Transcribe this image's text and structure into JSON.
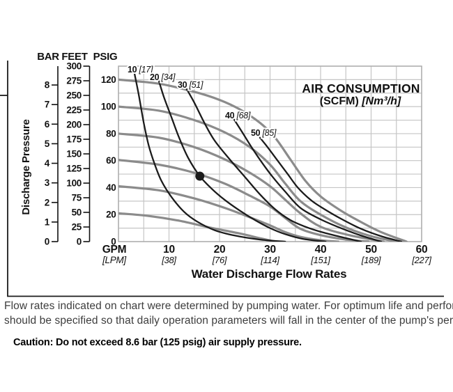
{
  "colors": {
    "performance_curve": "#8b8b8b",
    "air_curve": "#1b1b1b",
    "grid": "#c5c5c5",
    "plot_border": "#adadad",
    "text": "#111111",
    "figure_border": "#1b1b1b",
    "note_text": "#3d3d3d"
  },
  "figure": {
    "y_axis_title": "Discharge Pressure",
    "scale_headers": {
      "bar": "BAR",
      "feet": "FEET",
      "psig": "PSIG"
    },
    "x_unit_primary": "GPM",
    "x_unit_secondary": "[LPM]",
    "x_axis_title": "Water Discharge Flow Rates",
    "legend_title_line1": "AIR CONSUMPTION",
    "legend_title_bold": "(SCFM)",
    "legend_title_italic": "[Nm³/h]"
  },
  "chart_data": {
    "type": "line",
    "title": "AIR CONSUMPTION (SCFM) [Nm³/h]",
    "xlabel": "Water Discharge Flow Rates",
    "ylabel": "Discharge Pressure",
    "xlim_gpm": [
      0,
      60
    ],
    "ylim_psig": [
      0,
      130
    ],
    "grid_step_x_gpm": 5,
    "grid_step_y_psig": 10,
    "x_ticks": [
      {
        "gpm": "10",
        "lpm": "[38]"
      },
      {
        "gpm": "20",
        "lpm": "[76]"
      },
      {
        "gpm": "30",
        "lpm": "[114]"
      },
      {
        "gpm": "40",
        "lpm": "[151]"
      },
      {
        "gpm": "50",
        "lpm": "[189]"
      },
      {
        "gpm": "60",
        "lpm": "[227]"
      }
    ],
    "bar_scale": {
      "ticks": [
        0,
        1,
        2,
        3,
        4,
        5,
        6,
        7,
        8
      ],
      "psi_per_bar": 14.5038
    },
    "feet_scale": {
      "ticks": [
        0,
        25,
        50,
        75,
        100,
        125,
        150,
        175,
        200,
        225,
        250,
        275,
        300
      ],
      "psi_per_foot": 0.43333
    },
    "psig_scale": {
      "ticks": [
        0,
        20,
        40,
        60,
        80,
        100,
        120
      ]
    },
    "performance_curves": [
      {
        "name": "120-psig-curve",
        "start_psig": 120,
        "points": [
          [
            0,
            120
          ],
          [
            8,
            117
          ],
          [
            15,
            111
          ],
          [
            20,
            105
          ],
          [
            24,
            98
          ],
          [
            28,
            88
          ],
          [
            31,
            77
          ],
          [
            34,
            61
          ],
          [
            37,
            45
          ],
          [
            40,
            33.5
          ],
          [
            44,
            23
          ],
          [
            48,
            14.5
          ],
          [
            52,
            7
          ],
          [
            57,
            0
          ]
        ]
      },
      {
        "name": "100-psig-curve",
        "start_psig": 100,
        "points": [
          [
            0,
            100
          ],
          [
            8,
            97
          ],
          [
            15,
            90
          ],
          [
            21,
            81
          ],
          [
            26,
            70
          ],
          [
            30,
            57
          ],
          [
            33,
            43
          ],
          [
            36,
            30
          ],
          [
            40,
            20
          ],
          [
            45,
            10.5
          ],
          [
            50,
            4
          ],
          [
            55,
            0
          ]
        ]
      },
      {
        "name": "80-psig-curve",
        "start_psig": 80,
        "points": [
          [
            0,
            80
          ],
          [
            8,
            77
          ],
          [
            15,
            70
          ],
          [
            21,
            61
          ],
          [
            26,
            51
          ],
          [
            30,
            41
          ],
          [
            33,
            31
          ],
          [
            36,
            21
          ],
          [
            40,
            11
          ],
          [
            46,
            4.5
          ],
          [
            52.5,
            0
          ]
        ]
      },
      {
        "name": "60-psig-curve",
        "start_psig": 60,
        "points": [
          [
            0,
            60.5
          ],
          [
            8,
            57
          ],
          [
            15,
            51
          ],
          [
            21,
            43
          ],
          [
            26,
            34
          ],
          [
            30,
            26
          ],
          [
            33,
            17.5
          ],
          [
            36,
            9.5
          ],
          [
            40,
            4.8
          ],
          [
            45,
            1.5
          ],
          [
            49.5,
            0
          ]
        ]
      },
      {
        "name": "40-psig-curve",
        "start_psig": 40,
        "points": [
          [
            0,
            41
          ],
          [
            8,
            38
          ],
          [
            15,
            32
          ],
          [
            21,
            25
          ],
          [
            26,
            18
          ],
          [
            30,
            12
          ],
          [
            33,
            7
          ],
          [
            36,
            3.5
          ],
          [
            40,
            1
          ],
          [
            43.5,
            0
          ]
        ]
      },
      {
        "name": "20-psig-curve",
        "start_psig": 20,
        "points": [
          [
            0,
            21
          ],
          [
            6,
            19
          ],
          [
            12,
            15.5
          ],
          [
            18,
            10.5
          ],
          [
            24,
            6
          ],
          [
            28,
            2.5
          ],
          [
            31,
            0
          ]
        ]
      }
    ],
    "air_curves": [
      {
        "scfm": "10",
        "nm3h": "[17]",
        "points": [
          [
            3.2,
            124
          ],
          [
            4,
            109
          ],
          [
            5,
            88
          ],
          [
            6,
            71
          ],
          [
            7.2,
            57
          ],
          [
            8.5,
            45
          ],
          [
            10.5,
            33
          ],
          [
            13,
            22
          ],
          [
            15.5,
            15
          ],
          [
            19,
            8.5
          ],
          [
            23,
            4.5
          ],
          [
            28,
            1.5
          ],
          [
            33,
            0
          ]
        ]
      },
      {
        "scfm": "20",
        "nm3h": "[34]",
        "points": [
          [
            8,
            119
          ],
          [
            9,
            107
          ],
          [
            10.5,
            92
          ],
          [
            12,
            77
          ],
          [
            13.8,
            62
          ],
          [
            16.1,
            48.5
          ],
          [
            18.5,
            39
          ],
          [
            21,
            31
          ],
          [
            24,
            23
          ],
          [
            27,
            16
          ],
          [
            30,
            10
          ],
          [
            33,
            5.5
          ],
          [
            36.5,
            2
          ],
          [
            41,
            0
          ]
        ]
      },
      {
        "scfm": "30",
        "nm3h": "[51]",
        "points": [
          [
            13.5,
            113
          ],
          [
            15,
            103
          ],
          [
            17,
            88
          ],
          [
            19,
            75
          ],
          [
            22,
            61
          ],
          [
            25,
            48
          ],
          [
            28,
            35
          ],
          [
            31,
            24
          ],
          [
            34,
            16
          ],
          [
            37,
            11
          ],
          [
            40,
            7.3
          ],
          [
            44,
            3.5
          ],
          [
            48,
            0
          ]
        ]
      },
      {
        "scfm": "40",
        "nm3h": "[68]",
        "points": [
          [
            22.8,
            91
          ],
          [
            24.5,
            81
          ],
          [
            26.5,
            69
          ],
          [
            28.5,
            58
          ],
          [
            30.5,
            48
          ],
          [
            33,
            37
          ],
          [
            36,
            25
          ],
          [
            40,
            16.5
          ],
          [
            44,
            10
          ],
          [
            48,
            4.5
          ],
          [
            52,
            0
          ]
        ]
      },
      {
        "scfm": "50",
        "nm3h": "[85]",
        "points": [
          [
            28,
            77
          ],
          [
            29.5,
            70
          ],
          [
            31.5,
            60
          ],
          [
            33.5,
            50
          ],
          [
            35.5,
            40
          ],
          [
            38,
            31
          ],
          [
            40,
            25.8
          ],
          [
            44,
            17
          ],
          [
            48,
            9.5
          ],
          [
            52,
            4
          ],
          [
            56,
            0
          ]
        ]
      }
    ],
    "operating_point": {
      "gpm": 16.1,
      "psig": 48.5
    }
  },
  "footer": {
    "line1": "Flow rates indicated on chart were determined by pumping water. For optimum life and performance, pumps",
    "line2": "should be specified so that daily operation parameters will fall in the center of the pump's performance curves.",
    "caution": "Caution: Do not exceed 8.6 bar (125 psig) air supply pressure."
  }
}
